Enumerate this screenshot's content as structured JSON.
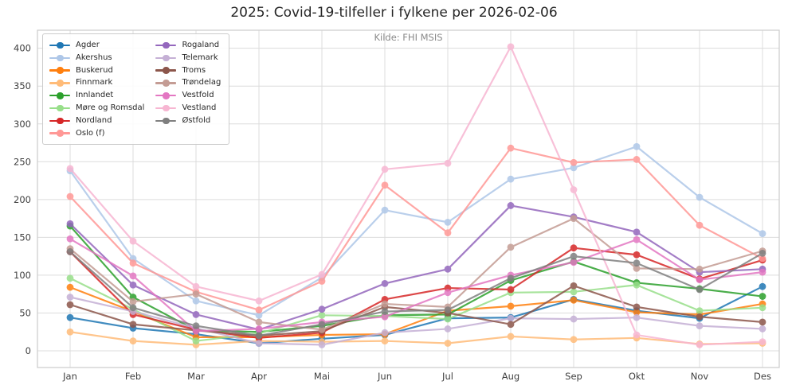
{
  "title": "2025: Covid-19-tilfeller i fylkene per 2026-02-06",
  "subtitle": "Kilde: FHI MSIS",
  "chart_data": {
    "type": "line",
    "title": "2025: Covid-19-tilfeller i fylkene per 2026-02-06",
    "subtitle": "Kilde: FHI MSIS",
    "xlabel": "",
    "ylabel": "",
    "x": [
      "Jan",
      "Feb",
      "Mar",
      "Apr",
      "Mai",
      "Jun",
      "Jul",
      "Aug",
      "Sep",
      "Okt",
      "Nov",
      "Des"
    ],
    "yticks": [
      0,
      50,
      100,
      150,
      200,
      250,
      300,
      350,
      400
    ],
    "ylim": [
      -22,
      425
    ],
    "grid": true,
    "legend_position": "upper-left",
    "legend_columns": 2,
    "series": [
      {
        "name": "Agder",
        "color": "#1f77b4",
        "values": [
          44,
          30,
          22,
          10,
          16,
          21,
          43,
          44,
          68,
          53,
          43,
          85
        ]
      },
      {
        "name": "Akershus",
        "color": "#aec7e8",
        "values": [
          238,
          122,
          66,
          47,
          97,
          186,
          170,
          227,
          242,
          270,
          203,
          155
        ]
      },
      {
        "name": "Buskerud",
        "color": "#ff7f0e",
        "values": [
          84,
          52,
          18,
          18,
          21,
          22,
          53,
          59,
          67,
          51,
          48,
          62
        ]
      },
      {
        "name": "Finnmark",
        "color": "#ffbb78",
        "values": [
          25,
          13,
          8,
          13,
          12,
          13,
          10,
          19,
          15,
          17,
          9,
          10
        ]
      },
      {
        "name": "Innlandet",
        "color": "#2ca02c",
        "values": [
          165,
          71,
          27,
          25,
          33,
          47,
          48,
          93,
          118,
          90,
          82,
          72
        ]
      },
      {
        "name": "Møre og Romsdal",
        "color": "#98df8a",
        "values": [
          96,
          55,
          13,
          23,
          47,
          46,
          42,
          77,
          78,
          87,
          53,
          57
        ]
      },
      {
        "name": "Nordland",
        "color": "#d62728",
        "values": [
          131,
          48,
          28,
          17,
          24,
          68,
          83,
          81,
          136,
          127,
          95,
          120
        ]
      },
      {
        "name": "Oslo (f)",
        "color": "#ff9896",
        "values": [
          204,
          116,
          78,
          54,
          92,
          219,
          156,
          268,
          249,
          253,
          166,
          122
        ]
      },
      {
        "name": "Rogaland",
        "color": "#9467bd",
        "values": [
          168,
          87,
          48,
          28,
          55,
          89,
          108,
          192,
          177,
          157,
          104,
          108
        ]
      },
      {
        "name": "Telemark",
        "color": "#c5b0d5",
        "values": [
          71,
          52,
          30,
          10,
          8,
          24,
          29,
          43,
          42,
          44,
          33,
          29
        ]
      },
      {
        "name": "Troms",
        "color": "#8c564b",
        "values": [
          61,
          35,
          27,
          20,
          26,
          58,
          50,
          35,
          86,
          58,
          45,
          38
        ]
      },
      {
        "name": "Trøndelag",
        "color": "#c49c94",
        "values": [
          135,
          65,
          75,
          38,
          28,
          62,
          58,
          137,
          175,
          109,
          108,
          132
        ]
      },
      {
        "name": "Vestfold",
        "color": "#e377c2",
        "values": [
          148,
          99,
          26,
          29,
          38,
          45,
          77,
          100,
          117,
          147,
          94,
          104
        ]
      },
      {
        "name": "Vestland",
        "color": "#f7b6d2",
        "values": [
          241,
          145,
          85,
          66,
          101,
          240,
          248,
          402,
          213,
          21,
          8,
          12
        ]
      },
      {
        "name": "Østfold",
        "color": "#7f7f7f",
        "values": [
          131,
          57,
          33,
          20,
          35,
          52,
          54,
          96,
          125,
          116,
          81,
          129
        ]
      }
    ]
  },
  "colors": {
    "grid": "#dcdcdc",
    "spine": "#cccccc",
    "tick_label": "#404040",
    "subtitle": "#8a8a8a"
  }
}
